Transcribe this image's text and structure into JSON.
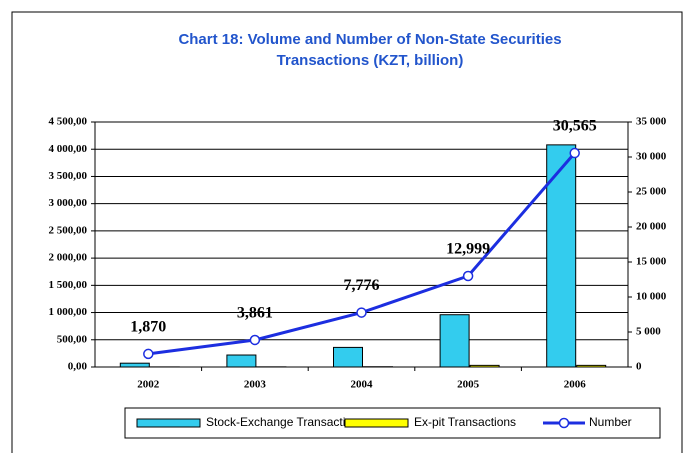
{
  "chart_data": {
    "type": "bar",
    "title": "Chart 18: Volume and Number of Non-State Securities",
    "subtitle": "Transactions (KZT, billion)",
    "categories": [
      "2002",
      "2003",
      "2004",
      "2005",
      "2006"
    ],
    "series": [
      {
        "name": "Stock-Exchange Transactions",
        "color": "#33ccee",
        "values": [
          70,
          220,
          360,
          960,
          4080
        ]
      },
      {
        "name": "Ex-pit Transactions",
        "color": "#ffff00",
        "values": [
          2,
          3,
          5,
          30,
          30
        ]
      },
      {
        "name": "Number",
        "type": "line",
        "axis": "y2",
        "color": "#1c2ee0",
        "values": [
          1870,
          3861,
          7776,
          12999,
          30565
        ],
        "value_labels": [
          "1,870",
          "3,861",
          "7,776",
          "12,999",
          "30,565"
        ]
      }
    ],
    "ylim": [
      0,
      4500
    ],
    "yticks": [
      {
        "value": 0,
        "label": "0,00"
      },
      {
        "value": 500,
        "label": "500,00"
      },
      {
        "value": 1000,
        "label": "1 000,00"
      },
      {
        "value": 1500,
        "label": "1 500,00"
      },
      {
        "value": 2000,
        "label": "2 000,00"
      },
      {
        "value": 2500,
        "label": "2 500,00"
      },
      {
        "value": 3000,
        "label": "3 000,00"
      },
      {
        "value": 3500,
        "label": "3 500,00"
      },
      {
        "value": 4000,
        "label": "4 000,00"
      },
      {
        "value": 4500,
        "label": "4 500,00"
      }
    ],
    "y2lim": [
      0,
      35000
    ],
    "y2ticks": [
      0,
      {
        "value": 5000,
        "label": "5 000"
      },
      {
        "value": 10000,
        "label": "10 000"
      },
      {
        "value": 15000,
        "label": "15 000"
      },
      {
        "value": 20000,
        "label": "20 000"
      },
      {
        "value": 25000,
        "label": "25 000"
      },
      {
        "value": 30000,
        "label": "30 000"
      },
      {
        "value": 35000,
        "label": "35 000"
      }
    ],
    "grid": true,
    "legend": "bottom"
  }
}
